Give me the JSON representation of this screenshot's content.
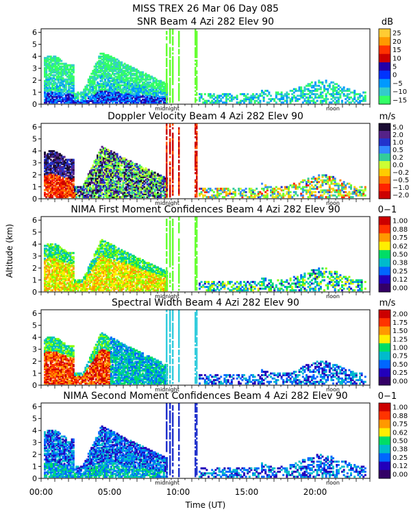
{
  "figure": {
    "title": "MISS TREX    26 Mar 06 Day 085",
    "xlabel": "Time (UT)",
    "ylabel": "Altitude (km)",
    "midnight_label": "midnight",
    "noon_label": "noon",
    "xticks": [
      "00:00",
      "05:00",
      "10:00",
      "15:00",
      "20:00"
    ],
    "xtick_values": [
      0,
      5,
      10,
      15,
      20
    ]
  },
  "chart_data": [
    {
      "type": "heatmap",
      "title": "SNR Beam 4 Azi 282 Elev 90",
      "xlim": [
        0,
        24
      ],
      "ylim": [
        0,
        6.3
      ],
      "yticks": [
        0,
        1,
        2,
        3,
        4,
        5,
        6
      ],
      "colorbar": {
        "unit": "dB",
        "labels": [
          "25",
          "20",
          "15",
          "10",
          "5",
          "0",
          "−5",
          "−10",
          "−15"
        ]
      }
    },
    {
      "type": "heatmap",
      "title": "Doppler Velocity Beam 4 Azi 282 Elev 90",
      "xlim": [
        0,
        24
      ],
      "ylim": [
        0,
        6.3
      ],
      "yticks": [
        0,
        1,
        2,
        3,
        4,
        5,
        6
      ],
      "colorbar": {
        "unit": "m/s",
        "labels": [
          "5.0",
          "2.0",
          "1.0",
          "0.5",
          "0.2",
          "0.0",
          "−0.2",
          "−0.5",
          "−1.0",
          "−2.0"
        ]
      }
    },
    {
      "type": "heatmap",
      "title": "NIMA First Moment Confidences Beam 4 Azi 282 Elev 90",
      "xlim": [
        0,
        24
      ],
      "ylim": [
        0,
        6.3
      ],
      "yticks": [
        0,
        1,
        2,
        3,
        4,
        5,
        6
      ],
      "colorbar": {
        "unit": "0−1",
        "labels": [
          "1.00",
          "0.88",
          "0.75",
          "0.62",
          "0.50",
          "0.38",
          "0.25",
          "0.12",
          "0.00"
        ]
      }
    },
    {
      "type": "heatmap",
      "title": "Spectral Width Beam 4 Azi 282 Elev 90",
      "xlim": [
        0,
        24
      ],
      "ylim": [
        0,
        6.3
      ],
      "yticks": [
        0,
        1,
        2,
        3,
        4,
        5,
        6
      ],
      "colorbar": {
        "unit": "m/s",
        "labels": [
          "2.00",
          "1.75",
          "1.50",
          "1.25",
          "1.00",
          "0.75",
          "0.50",
          "0.25",
          "0.00"
        ]
      }
    },
    {
      "type": "heatmap",
      "title": "NIMA Second Moment Confidences Beam 4 Azi 282 Elev 90",
      "xlim": [
        0,
        24
      ],
      "ylim": [
        0,
        6.3
      ],
      "yticks": [
        0,
        1,
        2,
        3,
        4,
        5,
        6
      ],
      "colorbar": {
        "unit": "0−1",
        "labels": [
          "1.00",
          "0.88",
          "0.75",
          "0.62",
          "0.50",
          "0.38",
          "0.25",
          "0.12",
          "0.00"
        ]
      }
    }
  ]
}
